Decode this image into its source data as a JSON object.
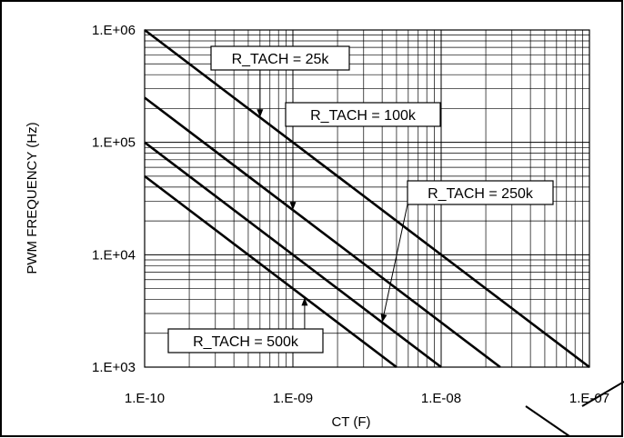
{
  "chart_data": {
    "type": "line",
    "xlabel": "CT (F)",
    "ylabel": "PWM FREQUENCY (Hz)",
    "x_scale": "log",
    "y_scale": "log",
    "xlim": [
      1e-10,
      1e-07
    ],
    "ylim": [
      1000,
      1000000
    ],
    "x_ticks": [
      "1.E-10",
      "1.E-09",
      "1.E-08",
      "1.E-07"
    ],
    "y_ticks": [
      "1.E+03",
      "1.E+04",
      "1.E+05",
      "1.E+06"
    ],
    "grid": true,
    "series": [
      {
        "name": "R_TACH = 25k",
        "x": [
          1e-10,
          1e-07
        ],
        "y": [
          1000000,
          1000
        ]
      },
      {
        "name": "R_TACH = 100k",
        "x": [
          1e-10,
          2.5e-08
        ],
        "y": [
          250000,
          1000
        ]
      },
      {
        "name": "R_TACH = 250k",
        "x": [
          1e-10,
          1e-08
        ],
        "y": [
          100000,
          1000
        ]
      },
      {
        "name": "R_TACH = 500k",
        "x": [
          1e-10,
          5e-09
        ],
        "y": [
          50000,
          1000
        ]
      }
    ]
  }
}
